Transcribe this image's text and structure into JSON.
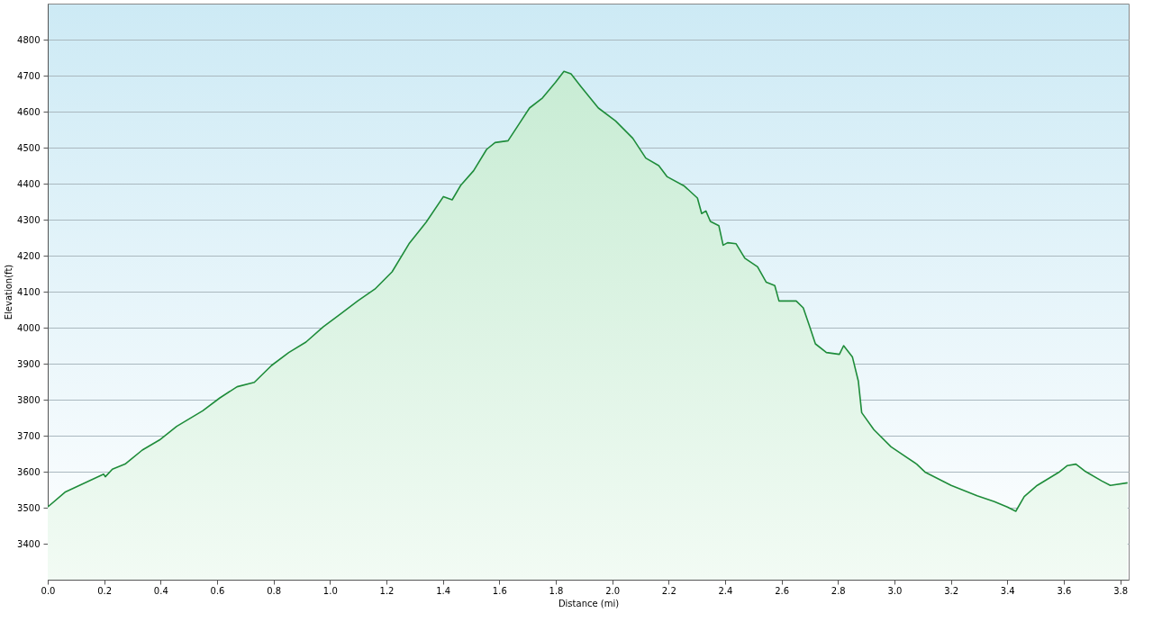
{
  "chart_data": {
    "type": "area",
    "xlabel": "Distance  (mi)",
    "ylabel": "Elevation(ft)",
    "x": [
      0,
      0.061,
      0.198,
      0.204,
      0.229,
      0.274,
      0.335,
      0.396,
      0.457,
      0.549,
      0.61,
      0.671,
      0.732,
      0.793,
      0.854,
      0.915,
      0.976,
      1.037,
      1.098,
      1.159,
      1.22,
      1.28,
      1.341,
      1.402,
      1.433,
      1.463,
      1.509,
      1.555,
      1.585,
      1.631,
      1.677,
      1.707,
      1.753,
      1.799,
      1.829,
      1.854,
      1.89,
      1.951,
      2.012,
      2.073,
      2.119,
      2.165,
      2.195,
      2.256,
      2.302,
      2.317,
      2.332,
      2.348,
      2.378,
      2.393,
      2.409,
      2.439,
      2.47,
      2.515,
      2.546,
      2.576,
      2.591,
      2.652,
      2.677,
      2.698,
      2.72,
      2.759,
      2.805,
      2.82,
      2.851,
      2.872,
      2.884,
      2.927,
      2.988,
      3.079,
      3.11,
      3.201,
      3.293,
      3.354,
      3.4,
      3.43,
      3.46,
      3.506,
      3.582,
      3.613,
      3.643,
      3.674,
      3.735,
      3.765,
      3.826
    ],
    "series": [
      {
        "color": "#1e8c3a",
        "values": [
          3502,
          3543,
          3593,
          3586,
          3607,
          3621,
          3660,
          3688,
          3726,
          3769,
          3805,
          3836,
          3848,
          3895,
          3931,
          3960,
          4002,
          4038,
          4074,
          4107,
          4155,
          4233,
          4293,
          4364,
          4355,
          4395,
          4436,
          4495,
          4514,
          4519,
          4574,
          4610,
          4638,
          4681,
          4712,
          4705,
          4669,
          4610,
          4574,
          4526,
          4471,
          4450,
          4419,
          4393,
          4360,
          4317,
          4324,
          4295,
          4283,
          4229,
          4236,
          4233,
          4193,
          4169,
          4126,
          4117,
          4074,
          4074,
          4055,
          4007,
          3955,
          3931,
          3926,
          3950,
          3919,
          3852,
          3764,
          3717,
          3669,
          3621,
          3598,
          3562,
          3533,
          3517,
          3502,
          3490,
          3531,
          3562,
          3598,
          3617,
          3621,
          3602,
          3574,
          3562,
          3569
        ]
      }
    ],
    "xlim": [
      0,
      3.83
    ],
    "ylim": [
      3300,
      4900
    ],
    "xticks": [
      {
        "value": 0,
        "label": "0.0"
      },
      0.2,
      0.4,
      0.6,
      0.8,
      {
        "value": 1,
        "label": "1.0"
      },
      1.2,
      1.4,
      1.6,
      1.8,
      {
        "value": 2,
        "label": "2.0"
      },
      2.2,
      2.4,
      2.6,
      2.8,
      {
        "value": 3,
        "label": "3.0"
      },
      3.2,
      3.4,
      3.6,
      3.8
    ],
    "yticks": [
      3400,
      3500,
      3600,
      3700,
      3800,
      3900,
      4000,
      4100,
      4200,
      4300,
      4400,
      4500,
      4600,
      4700,
      4800
    ],
    "grid": "y"
  }
}
